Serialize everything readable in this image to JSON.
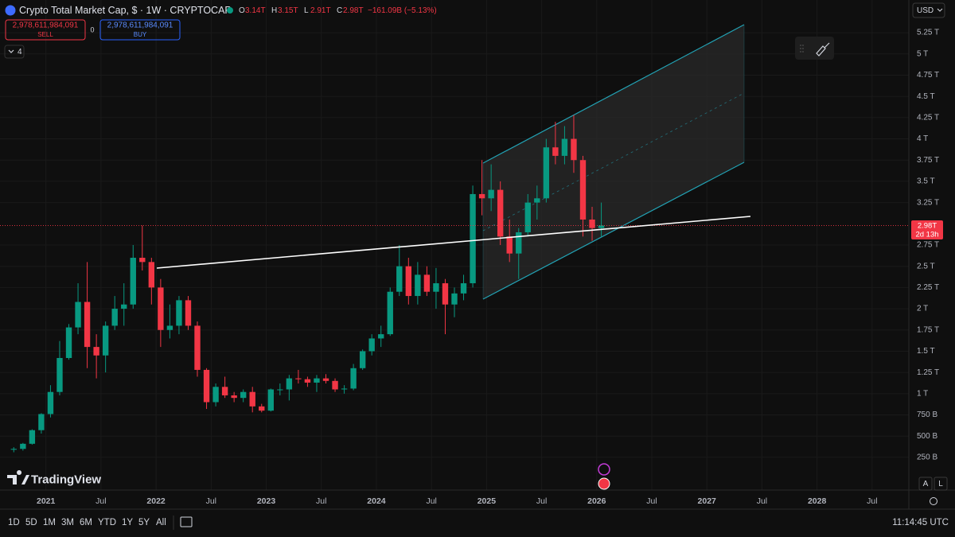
{
  "header": {
    "symbol": "Crypto Total Market Cap, $ · 1W · CRYPTOCAP",
    "ohlc": [
      {
        "key": "O",
        "value": "3.14T"
      },
      {
        "key": "H",
        "value": "3.15T"
      },
      {
        "key": "L",
        "value": "2.91T"
      },
      {
        "key": "C",
        "value": "2.98T"
      }
    ],
    "change": "−161.09B (−5.13%)"
  },
  "trade": {
    "sell_price": "2,978,611,984,091",
    "sell": "SELL",
    "spread": "0",
    "buy_price": "2,978,611,984,091",
    "buy": "BUY"
  },
  "indicators_count": "4",
  "currency": "USD",
  "price_tag": {
    "price": "2.98T",
    "countdown": "2d 13h"
  },
  "brand": "TradingView",
  "scale_buttons": [
    "A",
    "L"
  ],
  "timeframes": [
    "1D",
    "5D",
    "1M",
    "3M",
    "6M",
    "YTD",
    "1Y",
    "5Y",
    "All"
  ],
  "clock": "11:14:45 UTC",
  "chart_data": {
    "type": "candlestick",
    "x": [
      "2020-09",
      "2020-10",
      "2020-11",
      "2020-12",
      "2021-01",
      "2021-02",
      "2021-03",
      "2021-04",
      "2021-05",
      "2021-06",
      "2021-07",
      "2021-08",
      "2021-09",
      "2021-10",
      "2021-11",
      "2021-12",
      "2022-01",
      "2022-02",
      "2022-03",
      "2022-04",
      "2022-05",
      "2022-06",
      "2022-07",
      "2022-08",
      "2022-09",
      "2022-10",
      "2022-11",
      "2022-12",
      "2023-01",
      "2023-02",
      "2023-03",
      "2023-04",
      "2023-05",
      "2023-06",
      "2023-07",
      "2023-08",
      "2023-09",
      "2023-10",
      "2023-11",
      "2023-12",
      "2024-01",
      "2024-02",
      "2024-03",
      "2024-04",
      "2024-05",
      "2024-06",
      "2024-07",
      "2024-08",
      "2024-09",
      "2024-10",
      "2024-11",
      "2024-12",
      "2025-01",
      "2025-02",
      "2025-03",
      "2025-04",
      "2025-05",
      "2025-06",
      "2025-07",
      "2025-08",
      "2025-09",
      "2025-10",
      "2025-11",
      "2025-12",
      "2026-01"
    ],
    "open": [
      0.34,
      0.35,
      0.41,
      0.57,
      0.76,
      1.02,
      1.42,
      1.78,
      2.08,
      1.55,
      1.45,
      1.8,
      2.0,
      2.05,
      2.6,
      2.55,
      2.25,
      1.75,
      1.8,
      2.1,
      1.8,
      1.28,
      0.9,
      1.08,
      0.98,
      0.95,
      1.02,
      0.85,
      0.8,
      1.05,
      1.05,
      1.18,
      1.17,
      1.13,
      1.18,
      1.15,
      1.05,
      1.06,
      1.3,
      1.5,
      1.65,
      1.7,
      2.2,
      2.5,
      2.15,
      2.4,
      2.2,
      2.3,
      2.05,
      2.18,
      2.3,
      3.35,
      3.3,
      3.4,
      2.85,
      2.65,
      2.9,
      3.25,
      3.3,
      3.9,
      3.8,
      4.0,
      3.75,
      3.05,
      2.95
    ],
    "high": [
      0.37,
      0.42,
      0.58,
      0.77,
      1.1,
      1.62,
      1.82,
      2.3,
      2.55,
      1.7,
      1.85,
      2.15,
      2.3,
      2.75,
      2.98,
      2.6,
      2.35,
      2.05,
      2.15,
      2.15,
      1.85,
      1.3,
      1.12,
      1.2,
      1.02,
      1.05,
      1.08,
      0.88,
      1.06,
      1.12,
      1.22,
      1.28,
      1.2,
      1.22,
      1.23,
      1.18,
      1.1,
      1.35,
      1.52,
      1.7,
      1.8,
      2.25,
      2.75,
      2.6,
      2.55,
      2.5,
      2.48,
      2.35,
      2.25,
      2.4,
      3.45,
      3.75,
      3.7,
      3.5,
      3.05,
      2.95,
      3.35,
      3.45,
      4.0,
      4.2,
      4.15,
      4.28,
      3.8,
      3.2,
      3.25
    ],
    "low": [
      0.31,
      0.33,
      0.4,
      0.53,
      0.72,
      0.98,
      1.4,
      1.7,
      1.3,
      1.18,
      1.25,
      1.75,
      1.8,
      2.0,
      2.45,
      2.05,
      1.55,
      1.65,
      1.7,
      1.75,
      1.2,
      0.82,
      0.85,
      0.95,
      0.9,
      0.9,
      0.78,
      0.78,
      0.79,
      0.98,
      0.92,
      1.12,
      1.08,
      1.02,
      1.12,
      1.02,
      1.0,
      1.04,
      1.28,
      1.45,
      1.55,
      1.68,
      2.15,
      2.05,
      2.05,
      2.15,
      2.0,
      1.7,
      1.9,
      2.1,
      2.25,
      3.1,
      3.15,
      2.75,
      2.55,
      2.35,
      2.85,
      3.05,
      3.25,
      3.7,
      3.7,
      3.6,
      2.85,
      2.8,
      2.85
    ],
    "close": [
      0.35,
      0.41,
      0.57,
      0.76,
      1.02,
      1.42,
      1.78,
      2.08,
      1.55,
      1.45,
      1.8,
      2.0,
      2.05,
      2.6,
      2.55,
      2.25,
      1.75,
      1.8,
      2.1,
      1.8,
      1.28,
      0.9,
      1.08,
      0.98,
      0.95,
      1.02,
      0.85,
      0.8,
      1.05,
      1.05,
      1.18,
      1.17,
      1.13,
      1.18,
      1.15,
      1.05,
      1.06,
      1.3,
      1.5,
      1.65,
      1.7,
      2.2,
      2.5,
      2.15,
      2.4,
      2.2,
      2.3,
      2.05,
      2.18,
      2.3,
      3.35,
      3.3,
      3.4,
      2.85,
      2.65,
      2.9,
      3.25,
      3.3,
      3.9,
      3.8,
      4.0,
      3.75,
      3.05,
      2.95,
      2.98
    ],
    "up_color": "#089981",
    "down_color": "#f23645",
    "ylim": [
      -0.135,
      5.635
    ],
    "yticks": [
      {
        "value": 0.25,
        "label": "250 B"
      },
      {
        "value": 0.5,
        "label": "500 B"
      },
      {
        "value": 0.75,
        "label": "750 B"
      },
      {
        "value": 1,
        "label": "1 T"
      },
      {
        "value": 1.25,
        "label": "1.25 T"
      },
      {
        "value": 1.5,
        "label": "1.5 T"
      },
      {
        "value": 1.75,
        "label": "1.75 T"
      },
      {
        "value": 2,
        "label": "2 T"
      },
      {
        "value": 2.25,
        "label": "2.25 T"
      },
      {
        "value": 2.5,
        "label": "2.5 T"
      },
      {
        "value": 2.75,
        "label": "2.75 T"
      },
      {
        "value": 3.25,
        "label": "3.25 T"
      },
      {
        "value": 3.5,
        "label": "3.5 T"
      },
      {
        "value": 3.75,
        "label": "3.75 T"
      },
      {
        "value": 4,
        "label": "4 T"
      },
      {
        "value": 4.25,
        "label": "4.25 T"
      },
      {
        "value": 4.5,
        "label": "4.5 T"
      },
      {
        "value": 4.75,
        "label": "4.75 T"
      },
      {
        "value": 5,
        "label": "5 T"
      },
      {
        "value": 5.25,
        "label": "5.25 T"
      }
    ],
    "xlim": [
      "2020-08",
      "2028-11"
    ],
    "xticks": [
      {
        "value": "2021-01",
        "label": "2021"
      },
      {
        "value": "2021-07",
        "label": "Jul"
      },
      {
        "value": "2022-01",
        "label": "2022"
      },
      {
        "value": "2022-07",
        "label": "Jul"
      },
      {
        "value": "2023-01",
        "label": "2023"
      },
      {
        "value": "2023-07",
        "label": "Jul"
      },
      {
        "value": "2024-01",
        "label": "2024"
      },
      {
        "value": "2024-07",
        "label": "Jul"
      },
      {
        "value": "2025-01",
        "label": "2025"
      },
      {
        "value": "2025-07",
        "label": "Jul"
      },
      {
        "value": "2026-01",
        "label": "2026"
      },
      {
        "value": "2026-07",
        "label": "Jul"
      },
      {
        "value": "2027-01",
        "label": "2027"
      },
      {
        "value": "2027-07",
        "label": "Jul"
      },
      {
        "value": "2028-01",
        "label": "2028"
      },
      {
        "value": "2028-07",
        "label": "Jul"
      }
    ]
  }
}
